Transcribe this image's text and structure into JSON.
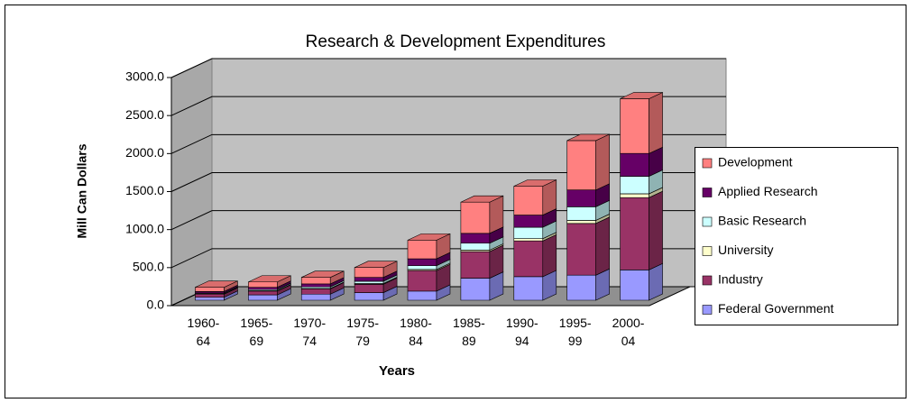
{
  "chart_data": {
    "type": "bar3d_stacked",
    "title": "Research & Development Expenditures",
    "y_label": "Mill Can Dollars",
    "x_label": "Years",
    "categories": [
      "1960-64",
      "1965-69",
      "1970-74",
      "1975-79",
      "1980-84",
      "1985-89",
      "1990-94",
      "1995-99",
      "2000-04"
    ],
    "series": [
      {
        "name": "Federal Government",
        "color": "#9999ff",
        "values": [
          40,
          70,
          80,
          100,
          120,
          290,
          310,
          330,
          400
        ]
      },
      {
        "name": "Industry",
        "color": "#993366",
        "values": [
          40,
          50,
          70,
          110,
          270,
          350,
          470,
          680,
          950
        ]
      },
      {
        "name": "University",
        "color": "#ffffcc",
        "values": [
          5,
          5,
          5,
          10,
          15,
          20,
          30,
          40,
          50
        ]
      },
      {
        "name": "Basic Research",
        "color": "#ccffff",
        "values": [
          10,
          15,
          20,
          30,
          50,
          90,
          150,
          180,
          230
        ]
      },
      {
        "name": "Applied Research",
        "color": "#660066",
        "values": [
          20,
          30,
          40,
          50,
          90,
          130,
          160,
          220,
          300
        ]
      },
      {
        "name": "Development",
        "color": "#ff8080",
        "values": [
          55,
          70,
          85,
          130,
          245,
          410,
          380,
          650,
          720
        ]
      }
    ],
    "ylim": [
      0,
      3000
    ],
    "yticks": [
      {
        "value": 0,
        "label": "0.0"
      },
      {
        "value": 500,
        "label": "500.0"
      },
      {
        "value": 1000,
        "label": "1000.0"
      },
      {
        "value": 1500,
        "label": "1500.0"
      },
      {
        "value": 2000,
        "label": "2000.0"
      },
      {
        "value": 2500,
        "label": "2500.0"
      },
      {
        "value": 3000,
        "label": "3000.0"
      }
    ],
    "grid": true,
    "legend": "right"
  }
}
